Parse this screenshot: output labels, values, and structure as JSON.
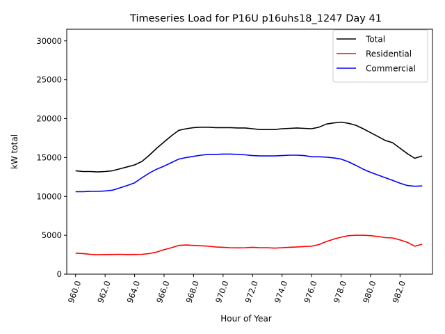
{
  "chart_data": {
    "type": "line",
    "title": "Timeseries Load for P16U p16uhs18_1247  Day 41",
    "xlabel": "Hour of Year",
    "ylabel": "kW total",
    "xlim": [
      959.4,
      984.2
    ],
    "ylim": [
      0,
      31500
    ],
    "xticks": [
      960,
      962,
      964,
      966,
      968,
      970,
      972,
      974,
      976,
      978,
      980,
      982
    ],
    "xtick_labels": [
      "960.0",
      "962.0",
      "964.0",
      "966.0",
      "968.0",
      "970.0",
      "972.0",
      "974.0",
      "976.0",
      "978.0",
      "980.0",
      "982.0"
    ],
    "yticks": [
      0,
      5000,
      10000,
      15000,
      20000,
      25000,
      30000
    ],
    "ytick_labels": [
      "0",
      "5000",
      "10000",
      "15000",
      "20000",
      "25000",
      "30000"
    ],
    "legend_position": "top-right",
    "x": [
      960,
      960.5,
      961,
      961.5,
      962,
      962.5,
      963,
      963.5,
      964,
      964.5,
      965,
      965.5,
      966,
      966.5,
      967,
      967.5,
      968,
      968.5,
      969,
      969.5,
      970,
      970.5,
      971,
      971.5,
      972,
      972.5,
      973,
      973.5,
      974,
      974.5,
      975,
      975.5,
      976,
      976.5,
      977,
      977.5,
      978,
      978.5,
      979,
      979.5,
      980,
      980.5,
      981,
      981.5,
      982,
      982.5,
      983,
      983.5
    ],
    "series": [
      {
        "name": "Total",
        "color": "#000000",
        "values": [
          13300,
          13200,
          13200,
          13150,
          13200,
          13300,
          13550,
          13800,
          14050,
          14500,
          15300,
          16200,
          17000,
          17800,
          18500,
          18700,
          18850,
          18900,
          18900,
          18850,
          18850,
          18850,
          18800,
          18800,
          18700,
          18600,
          18600,
          18600,
          18700,
          18750,
          18800,
          18750,
          18700,
          18900,
          19300,
          19450,
          19550,
          19400,
          19150,
          18700,
          18200,
          17700,
          17200,
          16900,
          16200,
          15500,
          14900,
          15200
        ]
      },
      {
        "name": "Residential",
        "color": "#ff0000",
        "values": [
          2700,
          2650,
          2550,
          2500,
          2520,
          2530,
          2550,
          2520,
          2530,
          2550,
          2650,
          2850,
          3150,
          3400,
          3700,
          3750,
          3700,
          3650,
          3600,
          3500,
          3450,
          3400,
          3380,
          3400,
          3450,
          3400,
          3400,
          3350,
          3400,
          3450,
          3500,
          3550,
          3600,
          3800,
          4200,
          4500,
          4750,
          4950,
          5000,
          5000,
          4950,
          4850,
          4700,
          4650,
          4400,
          4100,
          3600,
          3850
        ]
      },
      {
        "name": "Commercial",
        "color": "#0000ff",
        "values": [
          10600,
          10600,
          10650,
          10650,
          10700,
          10800,
          11100,
          11400,
          11750,
          12400,
          13000,
          13500,
          13900,
          14350,
          14800,
          15000,
          15150,
          15300,
          15400,
          15400,
          15450,
          15450,
          15400,
          15350,
          15250,
          15200,
          15200,
          15200,
          15250,
          15300,
          15300,
          15250,
          15100,
          15100,
          15050,
          14950,
          14800,
          14450,
          14000,
          13500,
          13100,
          12750,
          12400,
          12050,
          11700,
          11400,
          11300,
          11350
        ]
      }
    ]
  }
}
